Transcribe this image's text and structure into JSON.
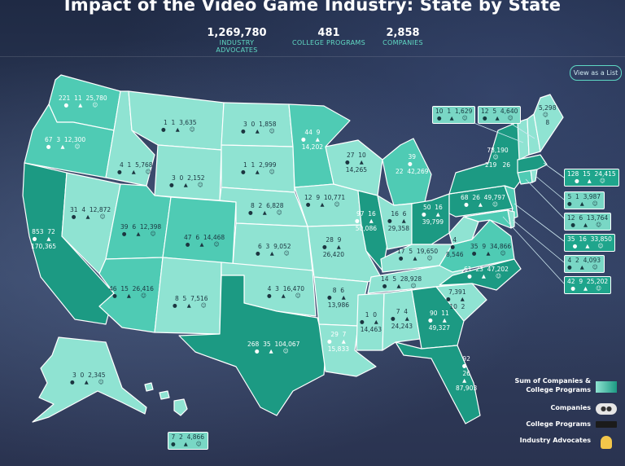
{
  "header": {
    "title": "Impact of the Video Game Industry: State by State",
    "stats": [
      {
        "value": "1,269,780",
        "label": "INDUSTRY ADVOCATES"
      },
      {
        "value": "481",
        "label": "COLLEGE PROGRAMS"
      },
      {
        "value": "2,858",
        "label": "COMPANIES"
      }
    ],
    "view_button": "View as a List"
  },
  "colors": {
    "light": "#8fe3d2",
    "mid": "#4fcbb4",
    "dark": "#1c9a83",
    "darkest": "#0f7c68",
    "icon_accent": "#f3c64a"
  },
  "icons": {
    "companies": "gamepad-icon",
    "college": "graduation-cap-icon",
    "advocates": "person-icon"
  },
  "states": [
    {
      "id": "wa",
      "companies": "221",
      "programs": "11",
      "advocates": "25,780"
    },
    {
      "id": "or",
      "companies": "67",
      "programs": "3",
      "advocates": "12,300"
    },
    {
      "id": "ca",
      "companies": "853",
      "programs": "72",
      "advocates": "170,365"
    },
    {
      "id": "nv",
      "companies": "31",
      "programs": "4",
      "advocates": "12,872"
    },
    {
      "id": "id",
      "companies": "4",
      "programs": "1",
      "advocates": "5,768"
    },
    {
      "id": "mt",
      "companies": "1",
      "programs": "1",
      "advocates": "3,635"
    },
    {
      "id": "wy",
      "companies": "3",
      "programs": "0",
      "advocates": "2,152"
    },
    {
      "id": "ut",
      "companies": "39",
      "programs": "6",
      "advocates": "12,398"
    },
    {
      "id": "az",
      "companies": "46",
      "programs": "15",
      "advocates": "26,416"
    },
    {
      "id": "co",
      "companies": "47",
      "programs": "6",
      "advocates": "14,468"
    },
    {
      "id": "nm",
      "companies": "8",
      "programs": "5",
      "advocates": "7,516"
    },
    {
      "id": "nd",
      "companies": "3",
      "programs": "0",
      "advocates": "1,858"
    },
    {
      "id": "sd",
      "companies": "1",
      "programs": "1",
      "advocates": "2,999"
    },
    {
      "id": "ne",
      "companies": "8",
      "programs": "2",
      "advocates": "6,828"
    },
    {
      "id": "ks",
      "companies": "6",
      "programs": "3",
      "advocates": "9,052"
    },
    {
      "id": "ok",
      "companies": "4",
      "programs": "3",
      "advocates": "16,470"
    },
    {
      "id": "tx",
      "companies": "268",
      "programs": "35",
      "advocates": "104,067"
    },
    {
      "id": "mn",
      "companies": "44",
      "programs": "9",
      "advocates": "14,202"
    },
    {
      "id": "ia",
      "companies": "12",
      "programs": "9",
      "advocates": "10,771"
    },
    {
      "id": "mo",
      "companies": "28",
      "programs": "9",
      "advocates": "26,420"
    },
    {
      "id": "ar",
      "companies": "8",
      "programs": "6",
      "advocates": "13,986"
    },
    {
      "id": "la",
      "companies": "29",
      "programs": "7",
      "advocates": "15,833"
    },
    {
      "id": "wi",
      "companies": "27",
      "programs": "10",
      "advocates": "14,265"
    },
    {
      "id": "il",
      "companies": "97",
      "programs": "16",
      "advocates": "50,086"
    },
    {
      "id": "mi",
      "companies": "39",
      "programs": "22",
      "advocates": "42,269"
    },
    {
      "id": "in",
      "companies": "16",
      "programs": "6",
      "advocates": "29,358"
    },
    {
      "id": "oh",
      "companies": "50",
      "programs": "16",
      "advocates": "39,799"
    },
    {
      "id": "ky",
      "companies": "17",
      "programs": "5",
      "advocates": "19,650"
    },
    {
      "id": "tn",
      "companies": "14",
      "programs": "5",
      "advocates": "28,928"
    },
    {
      "id": "ms",
      "companies": "1",
      "programs": "0",
      "advocates": "14,463"
    },
    {
      "id": "al",
      "companies": "7",
      "programs": "4",
      "advocates": "24,243"
    },
    {
      "id": "ga",
      "companies": "90",
      "programs": "11",
      "advocates": "49,327"
    },
    {
      "id": "fl",
      "companies": "92",
      "programs": "26",
      "advocates": "87,903"
    },
    {
      "id": "sc",
      "companies": "7,391",
      "programs": "10",
      "advocates": "2"
    },
    {
      "id": "nc",
      "companies": "61",
      "programs": "23",
      "advocates": "47,202"
    },
    {
      "id": "va",
      "companies": "35",
      "programs": "9",
      "advocates": "34,866"
    },
    {
      "id": "wv",
      "companies": "4",
      "programs": "",
      "advocates": "8,546"
    },
    {
      "id": "pa",
      "companies": "68",
      "programs": "26",
      "advocates": "49,797"
    },
    {
      "id": "ny",
      "companies": "219",
      "programs": "26",
      "advocates": "78,190"
    },
    {
      "id": "me",
      "companies": "8",
      "programs": "",
      "advocates": "5,298"
    },
    {
      "id": "ak",
      "companies": "3",
      "programs": "0",
      "advocates": "2,345"
    },
    {
      "id": "hi",
      "companies": "7",
      "programs": "2",
      "advocates": "4,866"
    }
  ],
  "callouts": [
    {
      "id": "vt",
      "companies": "10",
      "programs": "1",
      "advocates": "1,629"
    },
    {
      "id": "nh",
      "companies": "12",
      "programs": "5",
      "advocates": "4,640"
    },
    {
      "id": "ma",
      "companies": "128",
      "programs": "15",
      "advocates": "24,415"
    },
    {
      "id": "ri",
      "companies": "5",
      "programs": "1",
      "advocates": "3,987"
    },
    {
      "id": "ct",
      "companies": "12",
      "programs": "6",
      "advocates": "13,764"
    },
    {
      "id": "nj",
      "companies": "35",
      "programs": "16",
      "advocates": "33,850"
    },
    {
      "id": "de",
      "companies": "4",
      "programs": "2",
      "advocates": "4,093"
    },
    {
      "id": "md",
      "companies": "42",
      "programs": "9",
      "advocates": "25,202"
    }
  ],
  "legend": {
    "scale": "Sum of Companies & College Programs",
    "companies": "Companies",
    "college": "College Programs",
    "advocates": "Industry Advocates"
  }
}
